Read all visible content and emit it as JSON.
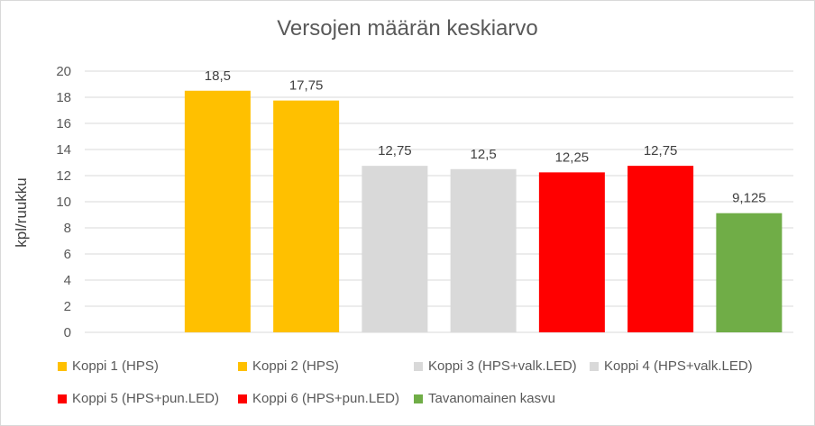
{
  "chart_data": {
    "type": "bar",
    "title": "Versojen määrän keskiarvo",
    "ylabel": "kpl/ruukku",
    "ylim": [
      0,
      20
    ],
    "yticks": [
      "0",
      "2",
      "4",
      "6",
      "8",
      "10",
      "12",
      "14",
      "16",
      "18",
      "20"
    ],
    "grid": true,
    "legend_position": "bottom",
    "series": [
      {
        "name": "Koppi 1 (HPS)",
        "value": 18.5,
        "label": "18,5",
        "color": "#FFC000"
      },
      {
        "name": "Koppi 2 (HPS)",
        "value": 17.75,
        "label": "17,75",
        "color": "#FFC000"
      },
      {
        "name": "Koppi 3 (HPS+valk.LED)",
        "value": 12.75,
        "label": "12,75",
        "color": "#D9D9D9"
      },
      {
        "name": "Koppi 4 (HPS+valk.LED)",
        "value": 12.5,
        "label": "12,5",
        "color": "#D9D9D9"
      },
      {
        "name": "Koppi 5 (HPS+pun.LED)",
        "value": 12.25,
        "label": "12,25",
        "color": "#FF0000"
      },
      {
        "name": "Koppi 6 (HPS+pun.LED)",
        "value": 12.75,
        "label": "12,75",
        "color": "#FF0000"
      },
      {
        "name": "Tavanomainen kasvu",
        "value": 9.125,
        "label": "9,125",
        "color": "#70AD47"
      }
    ]
  }
}
